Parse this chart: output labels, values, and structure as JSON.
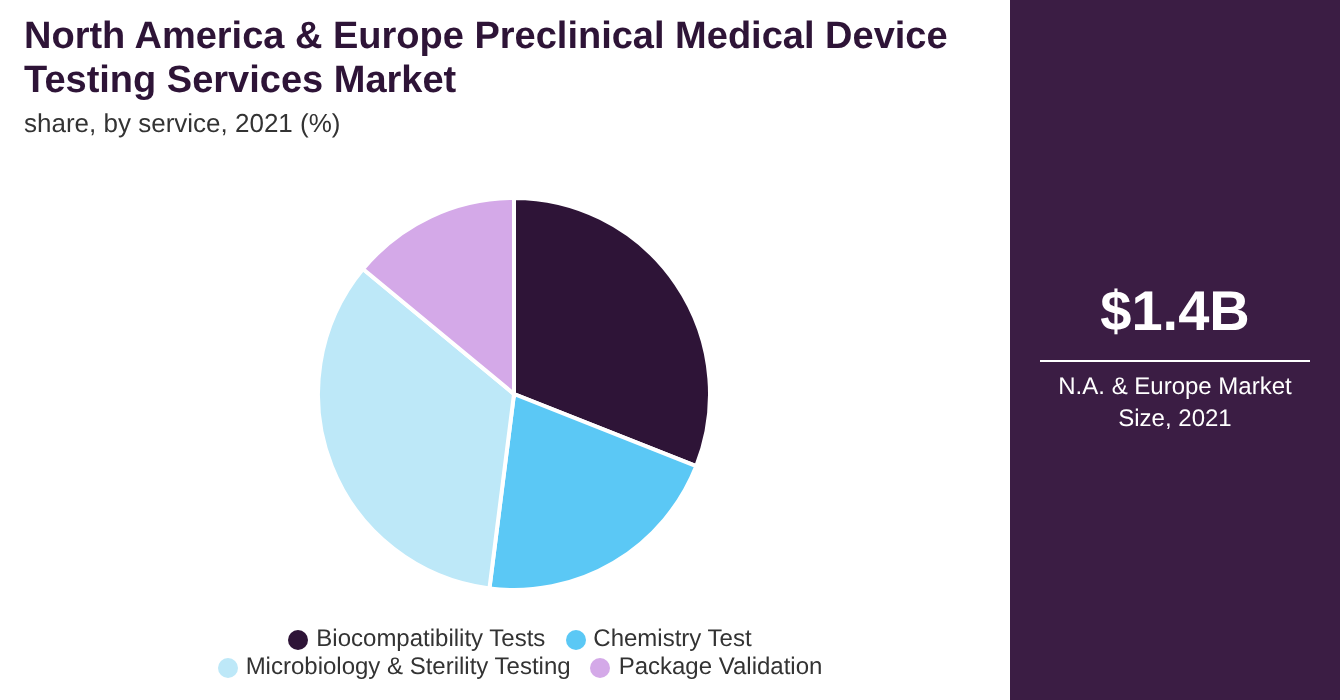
{
  "chart_data": {
    "type": "pie",
    "title": "North America & Europe Preclinical Medical Device Testing Services Market",
    "subtitle": "share, by service, 2021 (%)",
    "categories": [
      "Biocompatibility Tests",
      "Chemistry Test",
      "Microbiology & Sterility Testing",
      "Package Validation"
    ],
    "values": [
      31,
      21,
      34,
      14
    ],
    "colors": [
      "#2e1437",
      "#5bc8f5",
      "#bde8f8",
      "#d4a9e8"
    ],
    "legend": "bottom",
    "annotations": [
      "$1.4B",
      "N.A. & Europe Market Size, 2021"
    ]
  }
}
